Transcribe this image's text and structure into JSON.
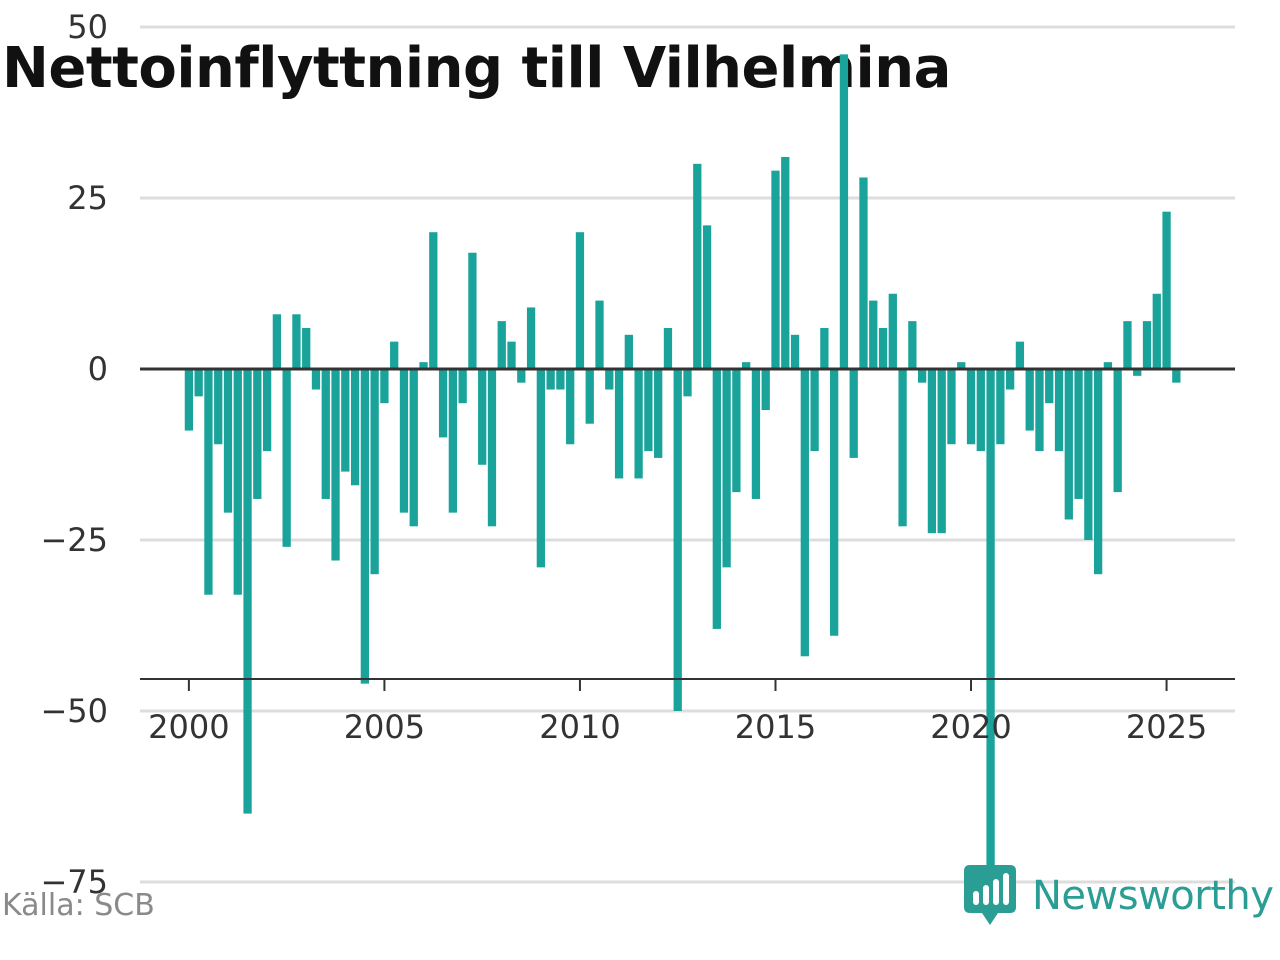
{
  "title": "Nettoinflyttning till Vilhelmina",
  "source": "Källa: SCB",
  "brand": {
    "name": "Newsworthy",
    "icon": "newsworthy-logo-icon",
    "color": "#2a9d94"
  },
  "colors": {
    "bar": "#1aa39a",
    "grid": "#dddddd",
    "zero": "#333333",
    "axis": "#333333"
  },
  "chart_data": {
    "type": "bar",
    "title": "Nettoinflyttning till Vilhelmina",
    "xlabel": "",
    "ylabel": "",
    "x_ticks": [
      "2000",
      "2005",
      "2010",
      "2015",
      "2020",
      "2025"
    ],
    "y_ticks": [
      50,
      25,
      0,
      -25,
      -50,
      -75
    ],
    "y_tick_labels": [
      "50",
      "25",
      "0",
      "−25",
      "−50",
      "−75"
    ],
    "ylim": [
      -90,
      52
    ],
    "xlim": [
      1998.75,
      2026.75
    ],
    "grid": true,
    "series": [
      {
        "x": [
          2000.0,
          2000.25,
          2000.5,
          2000.75,
          2001.0,
          2001.25,
          2001.5,
          2001.75,
          2002.0,
          2002.25,
          2002.5,
          2002.75,
          2003.0,
          2003.25,
          2003.5,
          2003.75,
          2004.0,
          2004.25,
          2004.5,
          2004.75,
          2005.0,
          2005.25,
          2005.5,
          2005.75,
          2006.0,
          2006.25,
          2006.5,
          2006.75,
          2007.0,
          2007.25,
          2007.5,
          2007.75,
          2008.0,
          2008.25,
          2008.5,
          2008.75,
          2009.0,
          2009.25,
          2009.5,
          2009.75,
          2010.0,
          2010.25,
          2010.5,
          2010.75,
          2011.0,
          2011.25,
          2011.5,
          2011.75,
          2012.0,
          2012.25,
          2012.5,
          2012.75,
          2013.0,
          2013.25,
          2013.5,
          2013.75,
          2014.0,
          2014.25,
          2014.5,
          2014.75,
          2015.0,
          2015.25,
          2015.5,
          2015.75,
          2016.0,
          2016.25,
          2016.5,
          2016.75,
          2017.0,
          2017.25,
          2017.5,
          2017.75,
          2018.0,
          2018.25,
          2018.5,
          2018.75,
          2019.0,
          2019.25,
          2019.5,
          2019.75,
          2020.0,
          2020.25,
          2020.5,
          2020.75,
          2021.0,
          2021.25,
          2021.5,
          2021.75,
          2022.0,
          2022.25,
          2022.5,
          2022.75,
          2023.0,
          2023.25,
          2023.5,
          2023.75,
          2024.0,
          2024.25,
          2024.5,
          2024.75,
          2025.0,
          2025.25
        ],
        "values": [
          -9,
          -4,
          -33,
          -11,
          -21,
          -33,
          -65,
          -19,
          -12,
          8,
          -26,
          8,
          6,
          -3,
          -19,
          -28,
          -15,
          -17,
          -46,
          -30,
          -5,
          4,
          -21,
          -23,
          1,
          20,
          -10,
          -21,
          -5,
          17,
          -14,
          -23,
          7,
          4,
          -2,
          9,
          -29,
          -3,
          -3,
          -11,
          20,
          -8,
          10,
          -3,
          -16,
          5,
          -16,
          -12,
          -13,
          6,
          -50,
          -4,
          30,
          21,
          -38,
          -29,
          -18,
          1,
          -19,
          -6,
          29,
          31,
          5,
          -42,
          -12,
          6,
          -39,
          46,
          -13,
          28,
          10,
          6,
          11,
          -23,
          7,
          -2,
          -24,
          -24,
          -11,
          1,
          -11,
          -12,
          -79,
          -11,
          -3,
          4,
          -9,
          -12,
          -5,
          -12,
          -22,
          -19,
          -25,
          -30,
          1,
          -18,
          7,
          -1,
          7,
          11,
          23,
          -2
        ]
      }
    ]
  }
}
